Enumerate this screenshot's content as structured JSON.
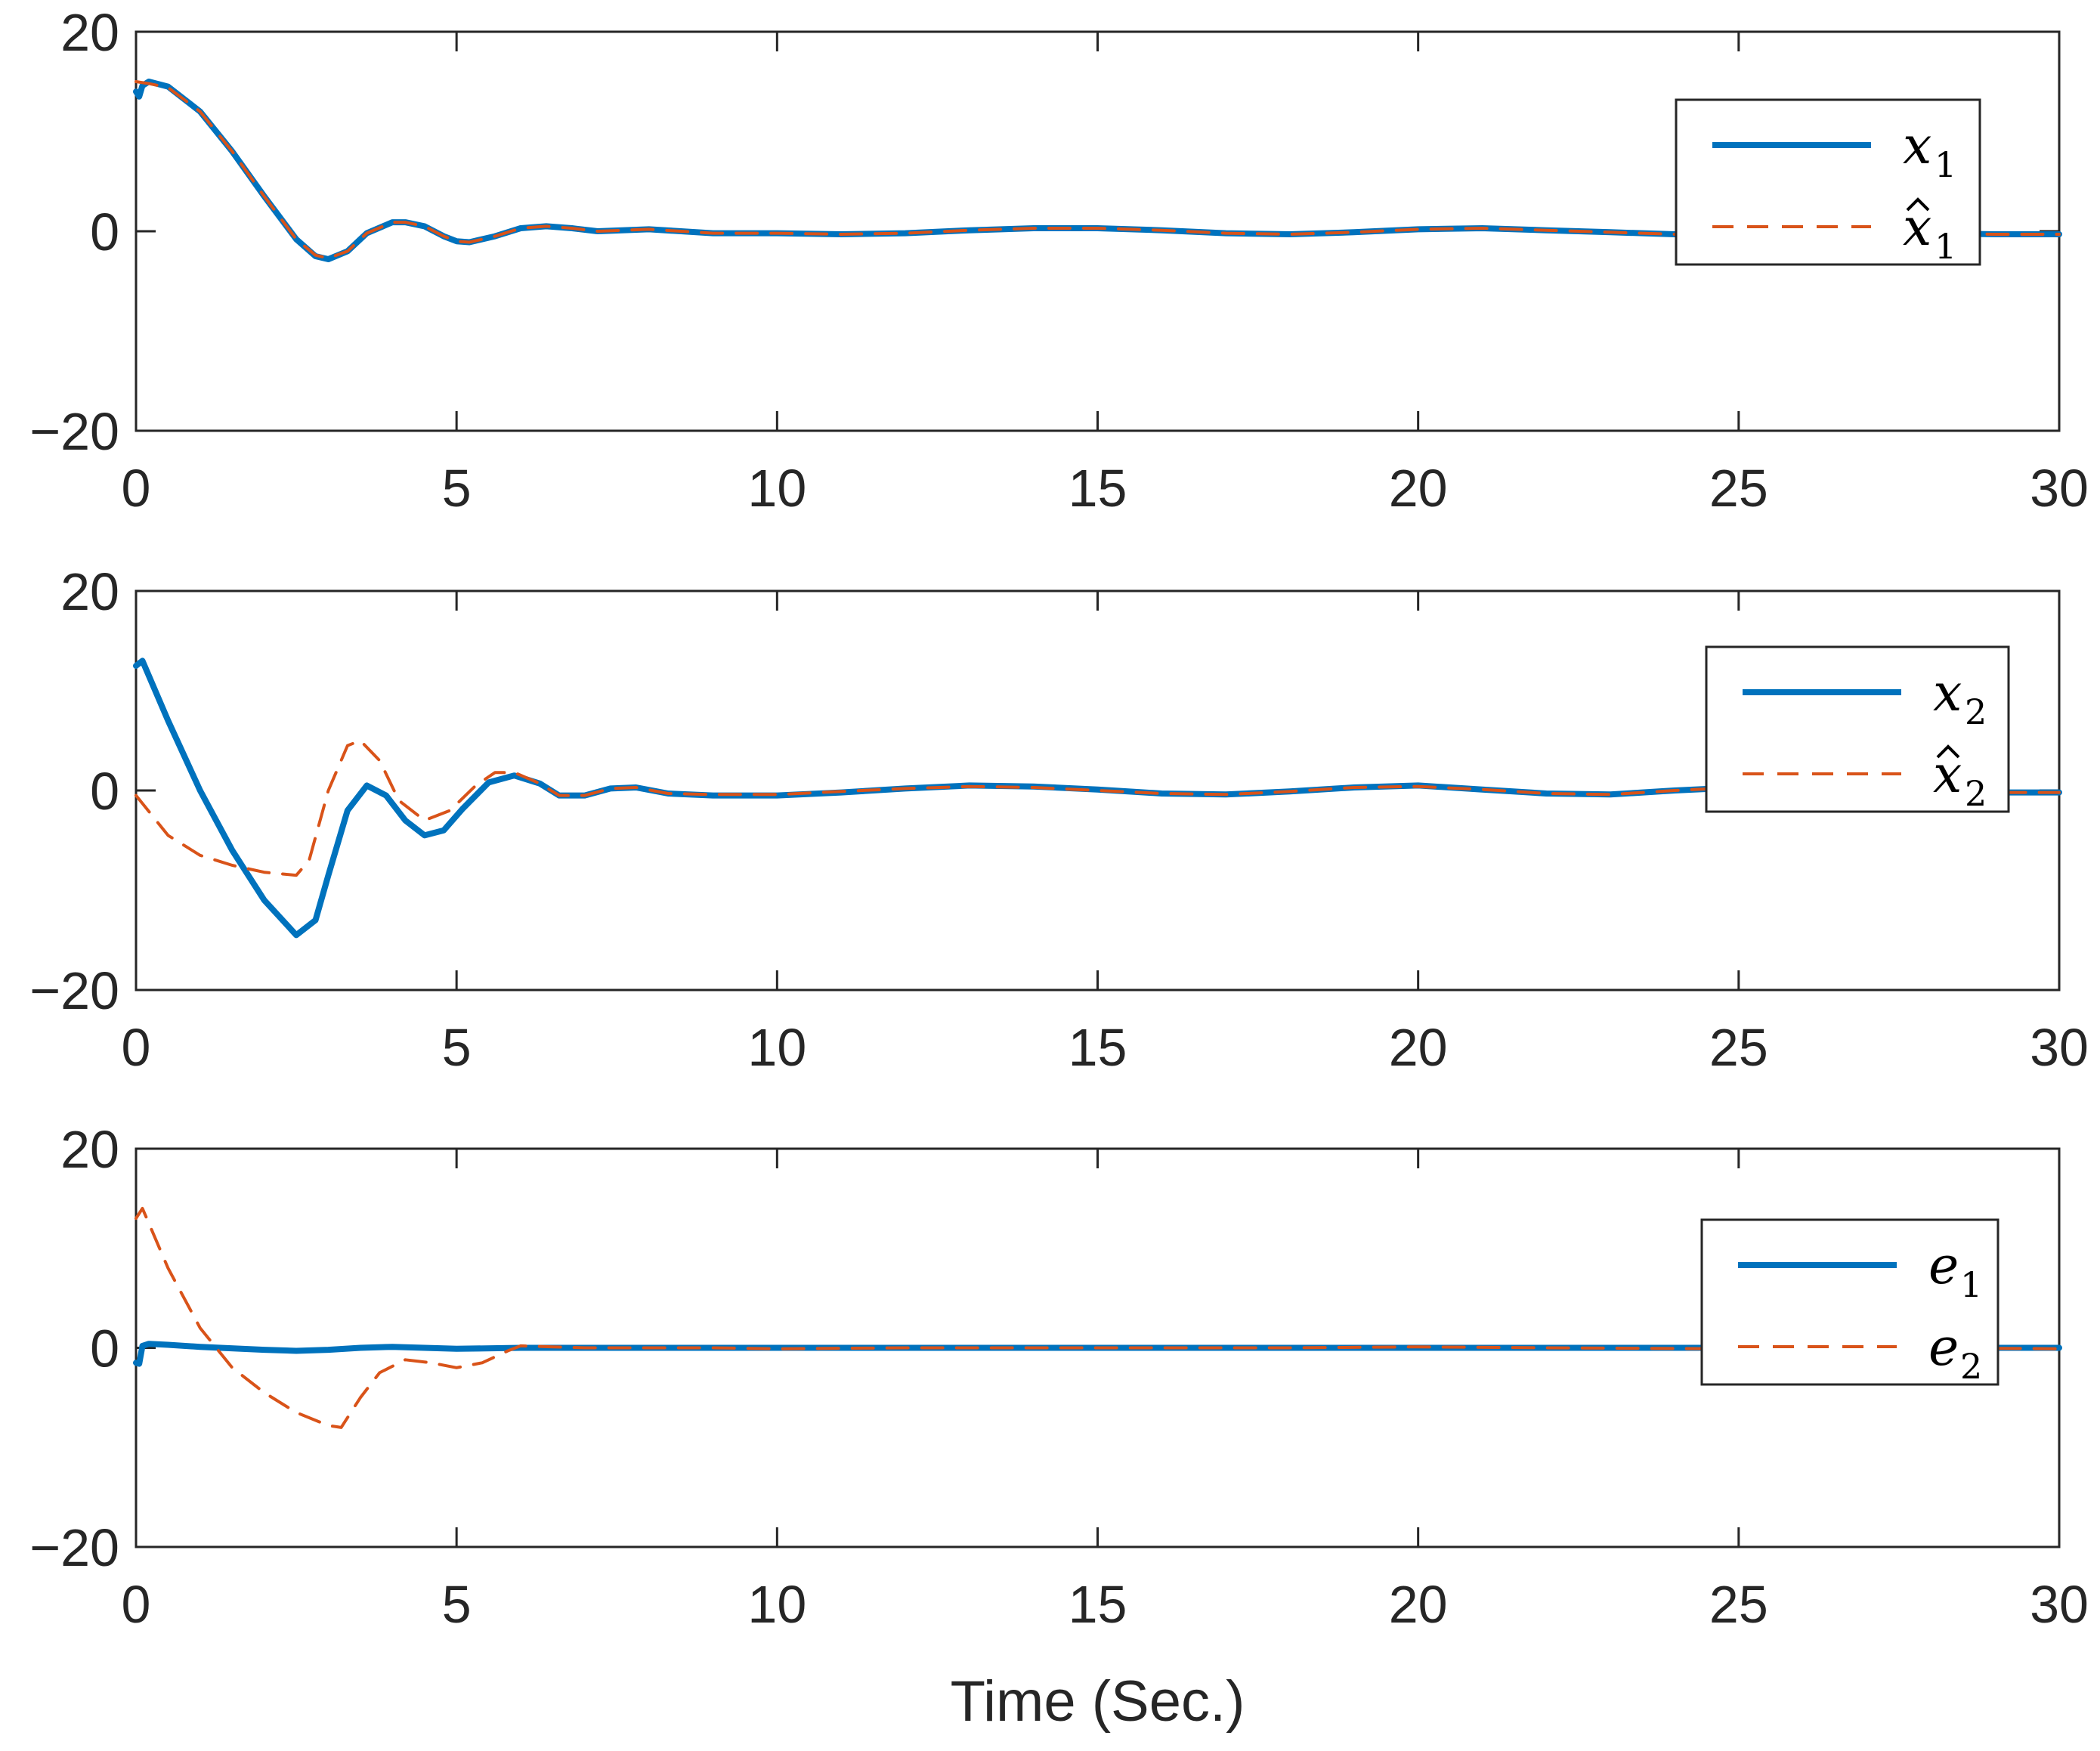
{
  "chart_data": [
    {
      "type": "line",
      "xlim": [
        0,
        30
      ],
      "ylim": [
        -20,
        20
      ],
      "xticks": [
        "0",
        "5",
        "10",
        "15",
        "20",
        "25",
        "30"
      ],
      "yticks": [
        "20",
        "0",
        "−20"
      ],
      "grid": false,
      "legend_position": "top-right",
      "series": [
        {
          "name": "x1",
          "legend_base": "x",
          "legend_sub": "1",
          "legend_hat": false,
          "color": "#0072BD",
          "style": "solid",
          "x": [
            0,
            0.05,
            0.1,
            0.2,
            0.5,
            1,
            1.5,
            2,
            2.5,
            2.8,
            3,
            3.3,
            3.6,
            4,
            4.2,
            4.5,
            4.8,
            5,
            5.2,
            5.6,
            6,
            6.4,
            6.8,
            7.2,
            8,
            9,
            10,
            11,
            12,
            13,
            14,
            15,
            16,
            17,
            18,
            19,
            20,
            21,
            22,
            23,
            24,
            25,
            26,
            27,
            28,
            29,
            30
          ],
          "y": [
            14,
            13.5,
            14.6,
            15,
            14.5,
            12,
            8,
            3.5,
            -0.8,
            -2.5,
            -2.8,
            -2,
            -0.2,
            0.9,
            0.9,
            0.5,
            -0.5,
            -1.0,
            -1.1,
            -0.5,
            0.3,
            0.5,
            0.3,
            0.0,
            0.2,
            -0.2,
            -0.2,
            -0.3,
            -0.2,
            0.1,
            0.3,
            0.3,
            0.1,
            -0.2,
            -0.3,
            -0.1,
            0.2,
            0.3,
            0.1,
            -0.1,
            -0.3,
            -0.3,
            -0.3,
            -0.1,
            -0.2,
            -0.3,
            -0.3
          ]
        },
        {
          "name": "x̂₁",
          "legend_base": "x",
          "legend_sub": "1",
          "legend_hat": true,
          "color": "#D95319",
          "style": "dashed",
          "x": [
            0,
            0.2,
            0.5,
            1,
            1.5,
            2,
            2.5,
            2.8,
            3,
            3.3,
            3.6,
            4,
            4.2,
            4.5,
            4.8,
            5,
            5.2,
            5.6,
            6,
            6.4,
            6.8,
            7.2,
            8,
            9,
            10,
            11,
            12,
            13,
            14,
            15,
            16,
            17,
            18,
            19,
            20,
            21,
            22,
            23,
            24,
            25,
            26,
            27,
            28,
            29,
            30
          ],
          "y": [
            15,
            14.8,
            14.4,
            12,
            8,
            3.5,
            -0.8,
            -2.4,
            -2.7,
            -2,
            -0.2,
            0.9,
            0.9,
            0.5,
            -0.5,
            -1.0,
            -1.1,
            -0.5,
            0.3,
            0.5,
            0.3,
            0.0,
            0.2,
            -0.2,
            -0.2,
            -0.3,
            -0.2,
            0.1,
            0.3,
            0.3,
            0.1,
            -0.2,
            -0.3,
            -0.1,
            0.2,
            0.3,
            0.1,
            -0.1,
            -0.3,
            -0.3,
            -0.3,
            -0.1,
            -0.2,
            -0.3,
            -0.3
          ]
        }
      ]
    },
    {
      "type": "line",
      "xlim": [
        0,
        30
      ],
      "ylim": [
        -20,
        20
      ],
      "xticks": [
        "0",
        "5",
        "10",
        "15",
        "20",
        "25",
        "30"
      ],
      "yticks": [
        "20",
        "0",
        "−20"
      ],
      "grid": false,
      "legend_position": "top-right",
      "series": [
        {
          "name": "x2",
          "legend_base": "x",
          "legend_sub": "2",
          "legend_hat": false,
          "color": "#0072BD",
          "style": "solid",
          "x": [
            0,
            0.1,
            0.5,
            1,
            1.5,
            2,
            2.5,
            2.8,
            3,
            3.3,
            3.6,
            3.9,
            4.2,
            4.5,
            4.8,
            5.1,
            5.5,
            5.9,
            6.3,
            6.6,
            7,
            7.4,
            7.8,
            8.3,
            9,
            10,
            11,
            12,
            13,
            14,
            15,
            16,
            17,
            18,
            19,
            20,
            21,
            22,
            23,
            24,
            25,
            26,
            27,
            28,
            29,
            30
          ],
          "y": [
            12.5,
            13,
            7,
            0,
            -6,
            -11,
            -14.5,
            -13,
            -8.5,
            -2,
            0.5,
            -0.5,
            -3,
            -4.5,
            -4,
            -1.8,
            0.8,
            1.5,
            0.7,
            -0.5,
            -0.5,
            0.2,
            0.3,
            -0.3,
            -0.5,
            -0.5,
            -0.2,
            0.2,
            0.5,
            0.4,
            0.1,
            -0.3,
            -0.4,
            -0.1,
            0.3,
            0.5,
            0.1,
            -0.3,
            -0.4,
            0,
            0.3,
            0.2,
            0.1,
            0.0,
            -0.2,
            -0.2
          ]
        },
        {
          "name": "x̂₂",
          "legend_base": "x",
          "legend_sub": "2",
          "legend_hat": true,
          "color": "#D95319",
          "style": "dashed",
          "x": [
            0,
            0.5,
            1,
            1.5,
            2,
            2.5,
            2.7,
            3,
            3.3,
            3.5,
            3.8,
            4.1,
            4.5,
            4.9,
            5.3,
            5.6,
            5.9,
            6.3,
            6.6,
            7,
            7.4,
            7.8,
            8.3,
            9,
            10,
            11,
            12,
            13,
            14,
            15,
            16,
            17,
            18,
            19,
            20,
            21,
            22,
            23,
            24,
            25,
            26,
            27,
            28,
            29,
            30
          ],
          "y": [
            -0.5,
            -4.5,
            -6.5,
            -7.5,
            -8.2,
            -8.5,
            -7,
            0,
            4.5,
            5,
            3,
            -1,
            -3,
            -2,
            0.5,
            1.8,
            1.8,
            0.7,
            -0.5,
            -0.5,
            0.2,
            0.3,
            -0.3,
            -0.4,
            -0.4,
            -0.1,
            0.2,
            0.4,
            0.3,
            0.0,
            -0.3,
            -0.4,
            -0.1,
            0.3,
            0.4,
            0.1,
            -0.3,
            -0.4,
            0,
            0.3,
            0.2,
            0.1,
            0.0,
            -0.2,
            -0.2
          ]
        }
      ]
    },
    {
      "type": "line",
      "xlim": [
        0,
        30
      ],
      "ylim": [
        -20,
        20
      ],
      "xticks": [
        "0",
        "5",
        "10",
        "15",
        "20",
        "25",
        "30"
      ],
      "yticks": [
        "20",
        "0",
        "−20"
      ],
      "xlabel": "Time (Sec.)",
      "grid": false,
      "legend_position": "top-right",
      "series": [
        {
          "name": "e1",
          "legend_base": "e",
          "legend_sub": "1",
          "legend_hat": false,
          "color": "#0072BD",
          "style": "solid",
          "x": [
            0,
            0.05,
            0.1,
            0.2,
            0.5,
            1,
            2,
            2.5,
            3,
            3.5,
            4,
            5,
            6,
            7,
            8,
            10,
            12,
            15,
            18,
            20,
            22,
            25,
            28,
            30
          ],
          "y": [
            -1.5,
            -1.6,
            0.2,
            0.4,
            0.3,
            0.1,
            -0.2,
            -0.3,
            -0.2,
            0,
            0.1,
            -0.1,
            0.0,
            0.0,
            0.0,
            0.0,
            0.0,
            0.0,
            0.0,
            0.0,
            0.0,
            0.0,
            0.0,
            0.0
          ]
        },
        {
          "name": "e2",
          "legend_base": "e",
          "legend_sub": "2",
          "legend_hat": false,
          "color": "#D95319",
          "style": "dashed",
          "x": [
            0,
            0.1,
            0.5,
            1,
            1.5,
            2,
            2.5,
            3,
            3.2,
            3.5,
            3.8,
            4.2,
            4.6,
            5.0,
            5.4,
            5.8,
            6.0,
            6.5,
            7,
            8,
            9,
            10,
            12,
            15,
            18,
            20,
            22,
            25,
            28,
            30
          ],
          "y": [
            13,
            14,
            8,
            2,
            -2,
            -4.5,
            -6.5,
            -7.8,
            -8,
            -5,
            -2.5,
            -1.2,
            -1.5,
            -2,
            -1.5,
            -0.3,
            0.2,
            0.1,
            0,
            0,
            0,
            -0.1,
            0,
            0,
            0,
            0.1,
            0,
            -0.1,
            0,
            -0.1
          ]
        }
      ]
    }
  ]
}
